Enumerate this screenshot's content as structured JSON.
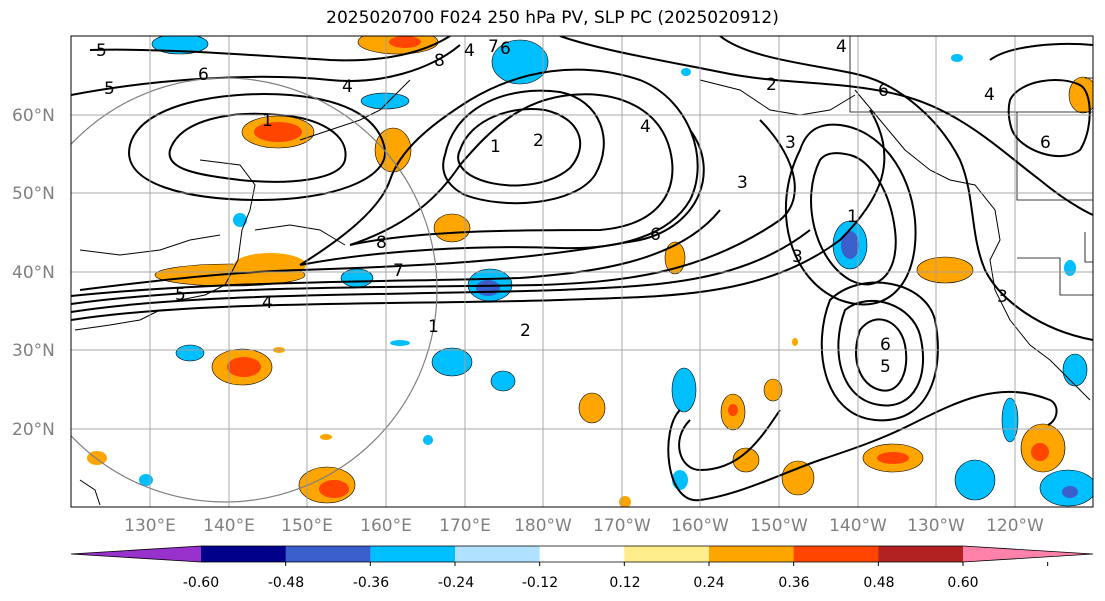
{
  "title": "2025020700 F024 250 hPa PV, SLP PC (2025020912)",
  "lat_labels": [
    "60°N",
    "50°N",
    "40°N",
    "30°N",
    "20°N"
  ],
  "lon_labels": [
    "130°E",
    "140°E",
    "150°E",
    "160°E",
    "170°E",
    "180°W",
    "170°W",
    "160°W",
    "150°W",
    "140°W",
    "130°W",
    "120°W"
  ],
  "colorbar": {
    "colors": [
      "#9932cc",
      "#00008b",
      "#3a5fcd",
      "#00bfff",
      "#b0e2ff",
      "#ffffff",
      "#ffec8b",
      "#ffa500",
      "#ff4500",
      "#b22222",
      "#ff82ab"
    ],
    "tick_labels": [
      "-0.60",
      "-0.48",
      "-0.36",
      "-0.24",
      "-0.12",
      "0.12",
      "0.24",
      "0.36",
      "0.48",
      "0.60"
    ]
  },
  "contour_labels": [
    "5",
    "6",
    "5",
    "4",
    "1",
    "8",
    "4",
    "7",
    "6",
    "1",
    "2",
    "4",
    "2",
    "3",
    "6",
    "3",
    "8",
    "7",
    "5",
    "4",
    "1",
    "2",
    "6",
    "3",
    "1",
    "6",
    "5",
    "3",
    "6",
    "4",
    "4"
  ]
}
